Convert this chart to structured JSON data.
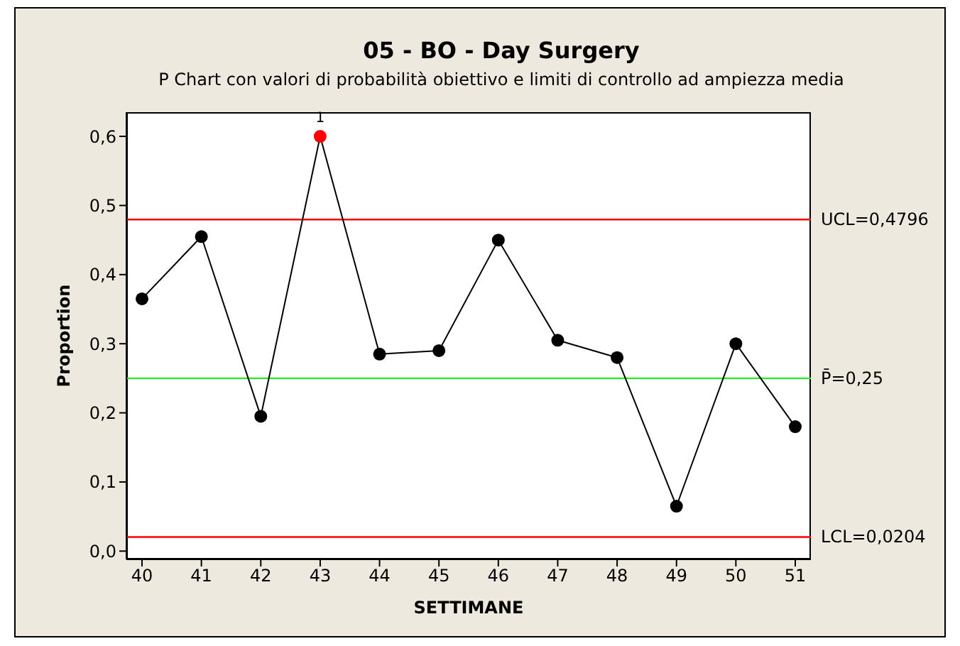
{
  "chart_data": {
    "type": "line",
    "title": "05 - BO - Day Surgery",
    "subtitle": "P Chart con valori di probabilità obiettivo e limiti di controllo ad ampiezza media",
    "xlabel": "SETTIMANE",
    "ylabel": "Proportion",
    "categories": [
      "40",
      "41",
      "42",
      "43",
      "44",
      "45",
      "46",
      "47",
      "48",
      "49",
      "50",
      "51"
    ],
    "series": [
      {
        "color": "#000000",
        "colors": [
          "#000000",
          "#000000",
          "#000000",
          "#ff0000",
          "#000000",
          "#000000",
          "#000000",
          "#000000",
          "#000000",
          "#000000",
          "#000000",
          "#000000"
        ],
        "values": [
          0.365,
          0.455,
          0.195,
          0.6,
          0.285,
          0.29,
          0.45,
          0.305,
          0.28,
          0.065,
          0.3,
          0.18
        ]
      }
    ],
    "ylim": [
      -0.012,
      0.635
    ],
    "yticks": [
      {
        "value": 0,
        "label": "0,0"
      },
      {
        "value": 0.1,
        "label": "0,1"
      },
      {
        "value": 0.2,
        "label": "0,2"
      },
      {
        "value": 0.3,
        "label": "0,3"
      },
      {
        "value": 0.4,
        "label": "0,4"
      },
      {
        "value": 0.5,
        "label": "0,5"
      },
      {
        "value": 0.6,
        "label": "0,6"
      }
    ],
    "ref_lines": [
      {
        "axis": "y",
        "value": 0.4796,
        "label": "UCL=0,4796",
        "color": "#ff0000"
      },
      {
        "axis": "y",
        "value": 0.25,
        "label": "P̄=0,25",
        "color": "#22ee22"
      },
      {
        "axis": "y",
        "value": 0.0204,
        "label": "LCL=0,0204",
        "color": "#ff0000"
      }
    ],
    "annotations": [
      {
        "text": "1",
        "x": "43",
        "y": 0.6
      }
    ],
    "marker": "circle"
  }
}
